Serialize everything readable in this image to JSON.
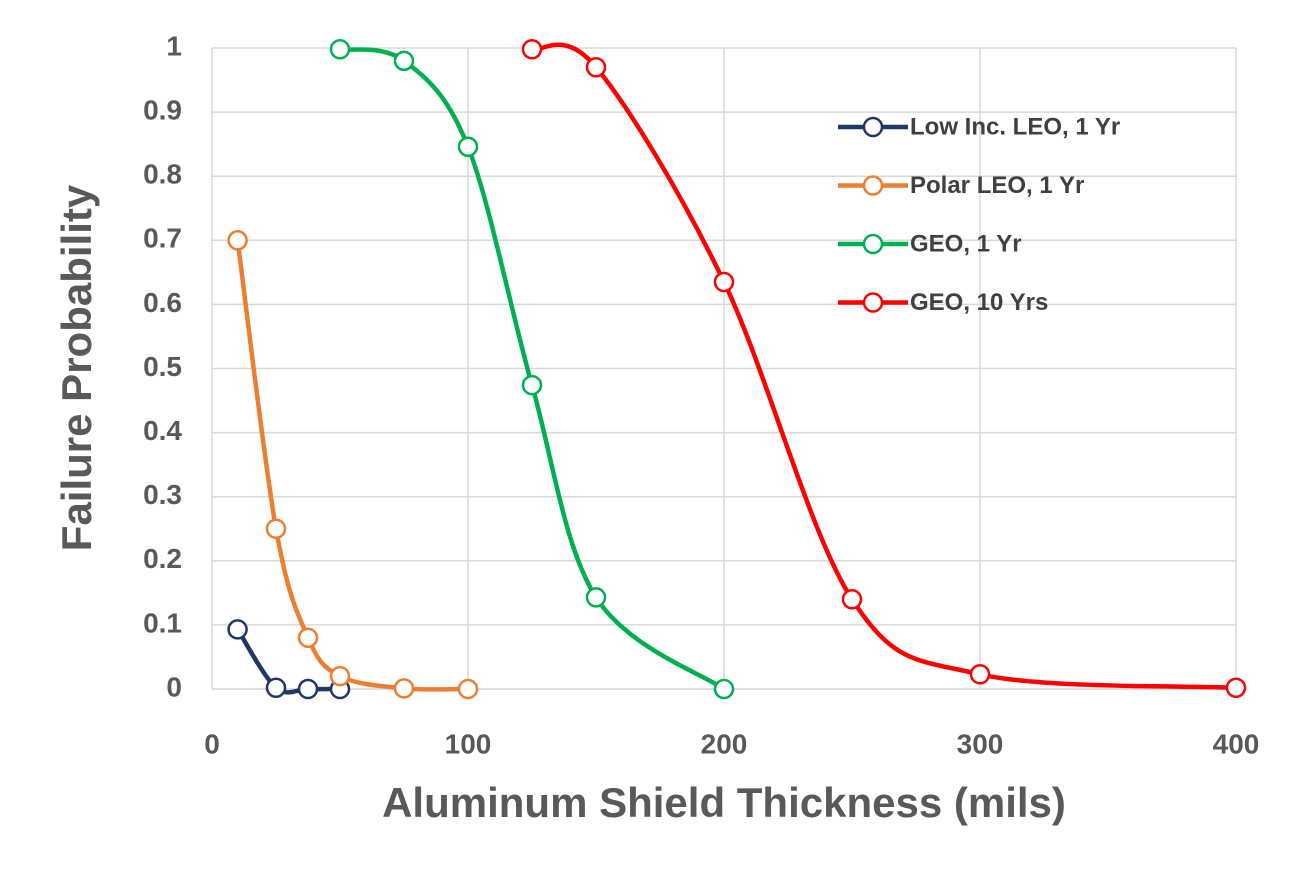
{
  "chart_data": {
    "type": "line",
    "smooth": true,
    "xlabel": "Aluminum Shield Thickness (mils)",
    "ylabel": "Failure Probability",
    "xlim": [
      0,
      400
    ],
    "xticks": [
      0,
      100,
      200,
      300,
      400
    ],
    "ylim": [
      0,
      1
    ],
    "yticks": [
      0,
      0.1,
      0.2,
      0.3,
      0.4,
      0.5,
      0.6,
      0.7,
      0.8,
      0.9,
      1
    ],
    "grid": true,
    "legend": "upper right",
    "series": [
      {
        "name": "Low Inc. LEO, 1 Yr",
        "color": "#1f3864",
        "x": [
          10,
          25,
          37.5,
          50
        ],
        "values": [
          0.093,
          0.002,
          0.0,
          0.0
        ]
      },
      {
        "name": "Polar LEO, 1 Yr",
        "color": "#ed7d31",
        "x": [
          10,
          25,
          37.5,
          50,
          75,
          100
        ],
        "values": [
          0.7,
          0.25,
          0.08,
          0.02,
          0.001,
          0.0
        ]
      },
      {
        "name": "GEO, 1 Yr",
        "color": "#00b050",
        "x": [
          50,
          75,
          100,
          125,
          150,
          200
        ],
        "values": [
          0.998,
          0.98,
          0.846,
          0.474,
          0.143,
          0.0
        ]
      },
      {
        "name": "GEO, 10 Yrs",
        "color": "#ff0000",
        "x": [
          125,
          150,
          200,
          250,
          300,
          400
        ],
        "values": [
          0.998,
          0.97,
          0.635,
          0.14,
          0.023,
          0.002
        ]
      }
    ]
  }
}
